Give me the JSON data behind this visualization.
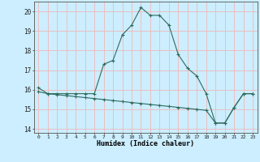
{
  "xlabel": "Humidex (Indice chaleur)",
  "bg_color": "#cceeff",
  "line_color": "#2e6b5e",
  "grid_color": "#f0b8b8",
  "x_values": [
    0,
    1,
    2,
    3,
    4,
    5,
    6,
    7,
    8,
    9,
    10,
    11,
    12,
    13,
    14,
    15,
    16,
    17,
    18,
    19,
    20,
    21,
    22,
    23
  ],
  "line1_y": [
    16.1,
    15.8,
    15.8,
    15.8,
    15.8,
    15.8,
    15.8,
    17.3,
    17.5,
    18.8,
    19.3,
    20.2,
    19.8,
    19.8,
    19.3,
    17.8,
    17.1,
    16.7,
    15.8,
    14.3,
    14.3,
    15.1,
    15.8,
    15.8
  ],
  "line2_y": [
    15.9,
    15.8,
    15.75,
    15.7,
    15.65,
    15.6,
    15.55,
    15.5,
    15.45,
    15.4,
    15.35,
    15.3,
    15.25,
    15.2,
    15.15,
    15.1,
    15.05,
    15.0,
    14.95,
    14.3,
    14.3,
    15.1,
    15.8,
    15.8
  ],
  "ylim": [
    13.8,
    20.5
  ],
  "yticks": [
    14,
    15,
    16,
    17,
    18,
    19,
    20
  ],
  "xlim": [
    -0.5,
    23.5
  ],
  "xtick_labels": [
    "0",
    "1",
    "2",
    "3",
    "4",
    "5",
    "6",
    "7",
    "8",
    "9",
    "10",
    "11",
    "12",
    "13",
    "14",
    "15",
    "16",
    "17",
    "18",
    "19",
    "20",
    "21",
    "22",
    "23"
  ]
}
